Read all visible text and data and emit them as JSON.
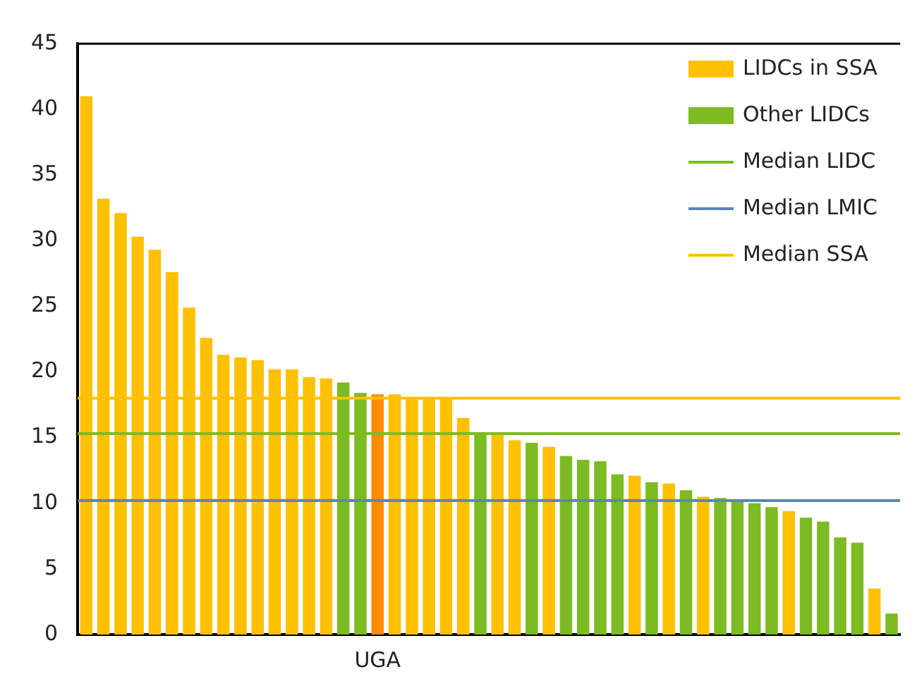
{
  "chart_data": {
    "type": "bar",
    "categories": [
      null,
      null,
      null,
      null,
      null,
      null,
      null,
      null,
      null,
      null,
      null,
      null,
      null,
      null,
      null,
      null,
      null,
      "UGA",
      null,
      null,
      null,
      null,
      null,
      null,
      null,
      null,
      null,
      null,
      null,
      null,
      null,
      null,
      null,
      null,
      null,
      null,
      null,
      null,
      null,
      null,
      null,
      null,
      null,
      null,
      null,
      null,
      null,
      null
    ],
    "series": [
      {
        "name": "LIDCs in SSA",
        "color": "#ffc000",
        "colors": [
          "#ffc000",
          "#ffc000",
          "#ffc000",
          "#ffc000",
          "#ffc000",
          "#ffc000",
          "#ffc000",
          "#ffc000",
          "#ffc000",
          "#ffc000",
          "#ffc000",
          "#ffc000",
          "#ffc000",
          "#ffc000",
          "#ffc000",
          null,
          null,
          "#ff8c00",
          "#ffc000",
          "#ffc000",
          "#ffc000",
          "#ffc000",
          "#ffc000",
          null,
          "#ffc000",
          "#ffc000",
          null,
          "#ffc000",
          null,
          null,
          null,
          null,
          "#ffc000",
          null,
          "#ffc000",
          null,
          "#ffc000",
          null,
          null,
          null,
          null,
          "#ffc000",
          null,
          null,
          null,
          null,
          "#ffc000",
          null
        ],
        "values": [
          41.0,
          33.2,
          32.1,
          30.3,
          29.3,
          27.6,
          24.9,
          22.6,
          21.3,
          21.1,
          20.9,
          20.2,
          20.2,
          19.6,
          19.5,
          null,
          null,
          18.3,
          18.3,
          18.0,
          18.0,
          18.0,
          16.5,
          null,
          15.2,
          14.8,
          null,
          14.3,
          null,
          null,
          null,
          null,
          12.1,
          null,
          11.5,
          null,
          10.5,
          null,
          null,
          null,
          null,
          9.4,
          null,
          null,
          null,
          null,
          3.5,
          null
        ]
      },
      {
        "name": "Other LIDCs",
        "color": "#7cbb22",
        "values": [
          null,
          null,
          null,
          null,
          null,
          null,
          null,
          null,
          null,
          null,
          null,
          null,
          null,
          null,
          null,
          19.2,
          18.4,
          null,
          null,
          null,
          null,
          null,
          null,
          15.4,
          null,
          null,
          14.6,
          null,
          13.6,
          13.3,
          13.2,
          12.2,
          null,
          11.6,
          null,
          11.0,
          null,
          10.4,
          10.3,
          10.0,
          9.7,
          null,
          8.9,
          8.6,
          7.4,
          7.0,
          null,
          1.6
        ]
      }
    ],
    "ylim": [
      0,
      45
    ],
    "yticks": [
      0,
      5,
      10,
      15,
      20,
      25,
      30,
      35,
      40,
      45
    ],
    "grid": false,
    "legend": "top right",
    "ref_lines": [
      {
        "axis": "y",
        "value": 15.3,
        "label": "Median LIDC",
        "color": "#7cbb22"
      },
      {
        "axis": "y",
        "value": 10.2,
        "label": "Median LMIC",
        "color": "#5b87b5"
      },
      {
        "axis": "y",
        "value": 18.0,
        "label": "Median SSA",
        "color": "#ffc000"
      }
    ]
  }
}
